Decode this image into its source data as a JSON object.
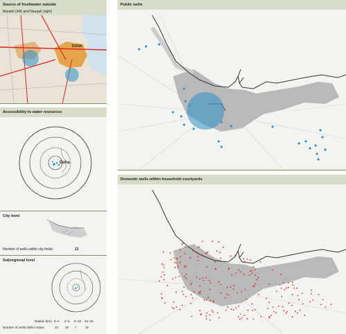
{
  "panels": {
    "source": {
      "title": "Source of freshwater outside",
      "subtitle": "Marakh (left) and Naeqah (right)",
      "map_label": "DOHA"
    },
    "accessibility": {
      "title": "Accessibility to water resources",
      "city_label": "Doha"
    },
    "city_level": {
      "title": "City level",
      "count_label": "Number of wells within city limits:",
      "count_value": "13"
    },
    "subregional": {
      "title": "Subregional level",
      "table": {
        "row1_label": "Radius (km)",
        "row1_values": [
          "0–2",
          "2–5",
          "5–10",
          "10–15"
        ],
        "row2_label": "Number of wells within radius",
        "row2_values": [
          "23",
          "15",
          "7",
          "15"
        ]
      }
    },
    "public_wells": {
      "title": "Public wells"
    },
    "domestic_wells": {
      "title": "Domestic wells within household courtyards"
    }
  },
  "colors": {
    "header": "#d6ddc8",
    "panel_bg": "#f3f3f0",
    "rule": "#7f8f66",
    "well_blue": "#2b93c8",
    "well_red": "#d8262c",
    "urban_gray": "#b9b9b9",
    "coast": "#333333"
  }
}
